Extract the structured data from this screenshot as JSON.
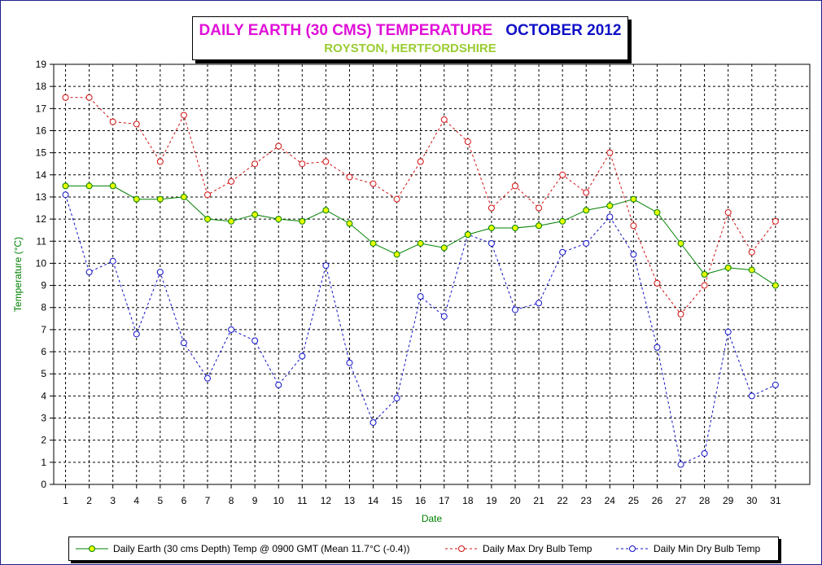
{
  "chart_data": {
    "type": "line",
    "title": "DAILY EARTH (30 CMS) TEMPERATURE",
    "title_date": "OCTOBER 2012",
    "subtitle": "ROYSTON, HERTFORDSHIRE",
    "xlabel": "Date",
    "ylabel": "Temperature (°C)",
    "ylim": [
      0,
      19
    ],
    "yticks": [
      "0",
      "1",
      "2",
      "3",
      "4",
      "5",
      "6",
      "7",
      "8",
      "9",
      "10",
      "11",
      "12",
      "13",
      "14",
      "15",
      "16",
      "17",
      "18",
      "19"
    ],
    "x": [
      "1",
      "2",
      "3",
      "4",
      "5",
      "6",
      "7",
      "8",
      "9",
      "10",
      "11",
      "12",
      "13",
      "14",
      "15",
      "16",
      "17",
      "18",
      "19",
      "20",
      "21",
      "22",
      "23",
      "24",
      "25",
      "26",
      "27",
      "28",
      "29",
      "30",
      "31"
    ],
    "grid": true,
    "legend_position": "bottom",
    "series": [
      {
        "name": "Daily Earth (30 cms Depth) Temp @ 0900 GMT (Mean 11.7°C (-0.4))",
        "color": "#008000",
        "marker_fill": "#e6ff00",
        "line_style": "solid",
        "values": [
          13.5,
          13.5,
          13.5,
          12.9,
          12.9,
          13.0,
          12.0,
          11.9,
          12.2,
          12.0,
          11.9,
          12.4,
          11.8,
          10.9,
          10.4,
          10.9,
          10.7,
          11.3,
          11.6,
          11.6,
          11.7,
          11.9,
          12.4,
          12.6,
          12.9,
          12.3,
          10.9,
          9.5,
          9.8,
          9.7,
          9.0
        ]
      },
      {
        "name": "Daily Max Dry Bulb Temp",
        "color": "#d01010",
        "marker_fill": "#ffffff",
        "line_style": "dashed",
        "values": [
          17.5,
          17.5,
          16.4,
          16.3,
          14.6,
          16.7,
          13.1,
          13.7,
          14.5,
          15.3,
          14.5,
          14.6,
          13.9,
          13.6,
          12.9,
          14.6,
          16.5,
          15.5,
          12.5,
          13.5,
          12.5,
          14.0,
          13.2,
          15.0,
          11.7,
          9.1,
          7.7,
          9.0,
          12.3,
          10.5,
          11.9
        ]
      },
      {
        "name": "Daily Min Dry Bulb Temp",
        "color": "#1010c8",
        "marker_fill": "#ffffff",
        "line_style": "dashed",
        "values": [
          13.1,
          9.6,
          10.1,
          6.8,
          9.6,
          6.4,
          4.8,
          7.0,
          6.5,
          4.5,
          5.8,
          9.9,
          5.5,
          2.8,
          3.9,
          8.5,
          7.6,
          11.3,
          10.9,
          7.9,
          8.2,
          10.5,
          10.9,
          12.1,
          10.4,
          6.2,
          0.9,
          1.4,
          6.9,
          4.0,
          4.5
        ]
      }
    ]
  }
}
